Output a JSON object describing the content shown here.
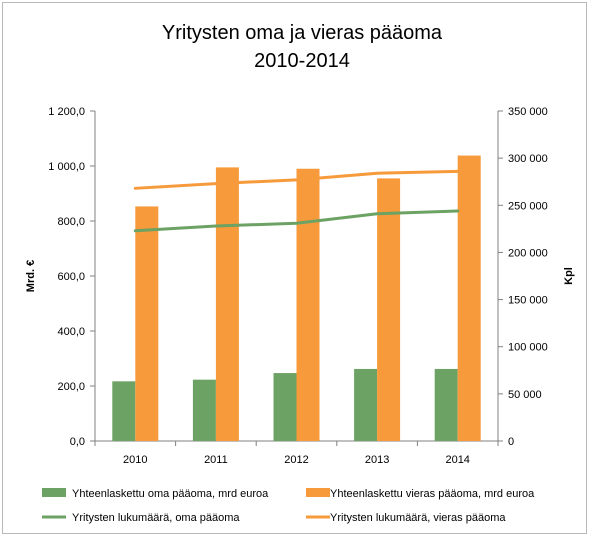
{
  "chart_data": {
    "type": "bar",
    "title_line1": "Yritysten oma ja vieras pääoma",
    "title_line2": "2010-2014",
    "ylabel": "Mrd. €",
    "y2label": "Kpl",
    "categories": [
      "2010",
      "2011",
      "2012",
      "2013",
      "2014"
    ],
    "ylim": [
      0,
      1200
    ],
    "y_ticks": [
      "0,0",
      "200,0",
      "400,0",
      "600,0",
      "800,0",
      "1 000,0",
      "1 200,0"
    ],
    "y2lim": [
      0,
      350000
    ],
    "y2_ticks": [
      "0",
      "50 000",
      "100 000",
      "150 000",
      "200 000",
      "250 000",
      "300 000",
      "350 000"
    ],
    "bar_series": [
      {
        "name": "Yhteenlaskettu oma pääoma, mrd  euroa",
        "color": "#6ca263",
        "values": [
          217,
          223,
          247,
          262,
          262
        ]
      },
      {
        "name": "Yhteenlaskettu vieras pääoma, mrd euroa",
        "color": "#f79a3b",
        "values": [
          853,
          995,
          990,
          955,
          1038
        ]
      }
    ],
    "line_series": [
      {
        "name": "Yritysten lukumäärä, oma pääoma",
        "color": "#6ca263",
        "axis": "right",
        "values": [
          223000,
          228000,
          231000,
          241000,
          244000
        ]
      },
      {
        "name": "Yritysten lukumäärä, vieras pääoma",
        "color": "#f79a3b",
        "axis": "right",
        "values": [
          268000,
          273000,
          277000,
          284000,
          286000
        ]
      }
    ],
    "grid": false,
    "legend_position": "bottom"
  }
}
